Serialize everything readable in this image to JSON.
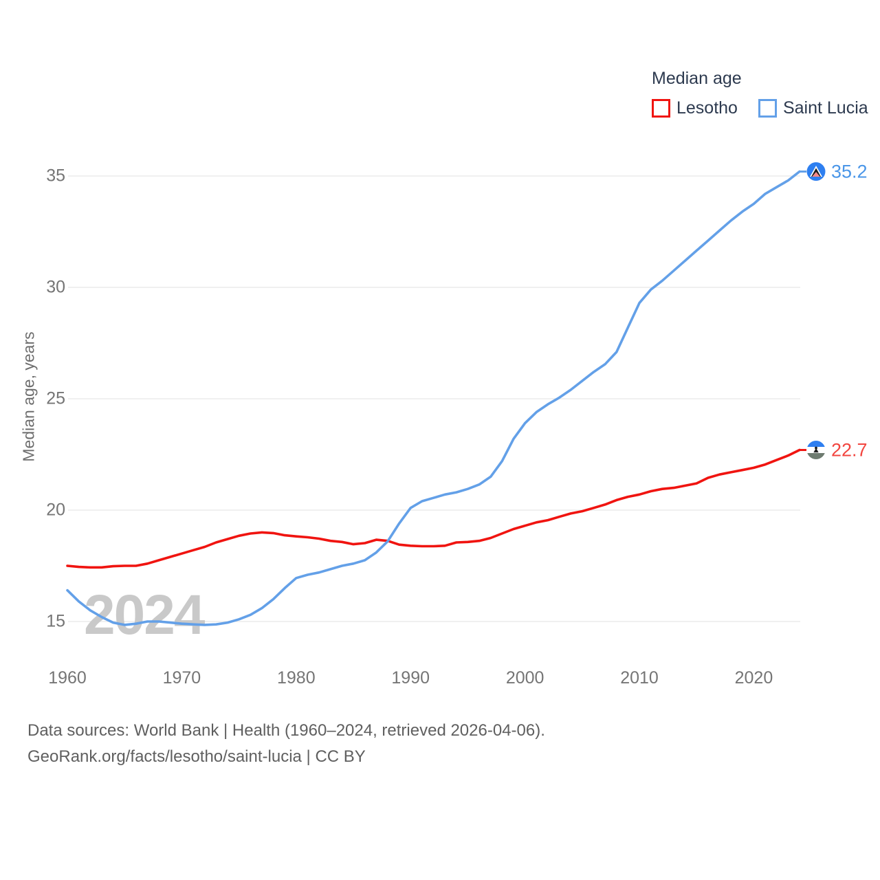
{
  "legend": {
    "title": "Median age"
  },
  "watermark": "2024",
  "footer": {
    "line1": "Data sources: World Bank | Health (1960–2024, retrieved 2026-04-06).",
    "line2": "GeoRank.org/facts/lesotho/saint-lucia | CC BY"
  },
  "chart_data": {
    "type": "line",
    "title": "Median age",
    "xlabel": "",
    "ylabel": "Median age, years",
    "x_start": 1960,
    "x_end": 2024,
    "xticks": [
      1960,
      1970,
      1980,
      1990,
      2000,
      2010,
      2020
    ],
    "yticks": [
      15,
      20,
      25,
      30,
      35
    ],
    "ylim": [
      13.5,
      36.5
    ],
    "grid": "horizontal",
    "legend_position": "top-right",
    "series": [
      {
        "name": "Lesotho",
        "color": "#f01410",
        "end_value": 22.7,
        "end_label": "22.7",
        "values": [
          17.5,
          17.45,
          17.43,
          17.43,
          17.48,
          17.5,
          17.5,
          17.6,
          17.75,
          17.9,
          18.05,
          18.2,
          18.35,
          18.55,
          18.7,
          18.85,
          18.95,
          19.0,
          18.97,
          18.87,
          18.82,
          18.78,
          18.72,
          18.62,
          18.57,
          18.47,
          18.52,
          18.67,
          18.62,
          18.45,
          18.4,
          18.38,
          18.38,
          18.4,
          18.55,
          18.57,
          18.62,
          18.75,
          18.95,
          19.15,
          19.3,
          19.45,
          19.55,
          19.7,
          19.85,
          19.95,
          20.1,
          20.25,
          20.45,
          20.6,
          20.7,
          20.85,
          20.95,
          21.0,
          21.1,
          21.2,
          21.45,
          21.6,
          21.7,
          21.8,
          21.9,
          22.05,
          22.25,
          22.45,
          22.7
        ]
      },
      {
        "name": "Saint Lucia",
        "color": "#63a0e8",
        "end_value": 35.2,
        "end_label": "35.2",
        "values": [
          16.4,
          15.9,
          15.5,
          15.2,
          14.95,
          14.85,
          14.9,
          15.0,
          15.0,
          14.95,
          14.9,
          14.87,
          14.85,
          14.87,
          14.95,
          15.1,
          15.3,
          15.6,
          16.0,
          16.5,
          16.95,
          17.1,
          17.2,
          17.35,
          17.5,
          17.6,
          17.75,
          18.1,
          18.6,
          19.4,
          20.1,
          20.4,
          20.55,
          20.7,
          20.8,
          20.95,
          21.15,
          21.5,
          22.2,
          23.2,
          23.9,
          24.4,
          24.75,
          25.05,
          25.4,
          25.8,
          26.2,
          26.55,
          27.1,
          28.2,
          29.3,
          29.9,
          30.3,
          30.75,
          31.2,
          31.65,
          32.1,
          32.55,
          33.0,
          33.4,
          33.75,
          34.2,
          34.5,
          34.8,
          35.2
        ]
      }
    ]
  }
}
